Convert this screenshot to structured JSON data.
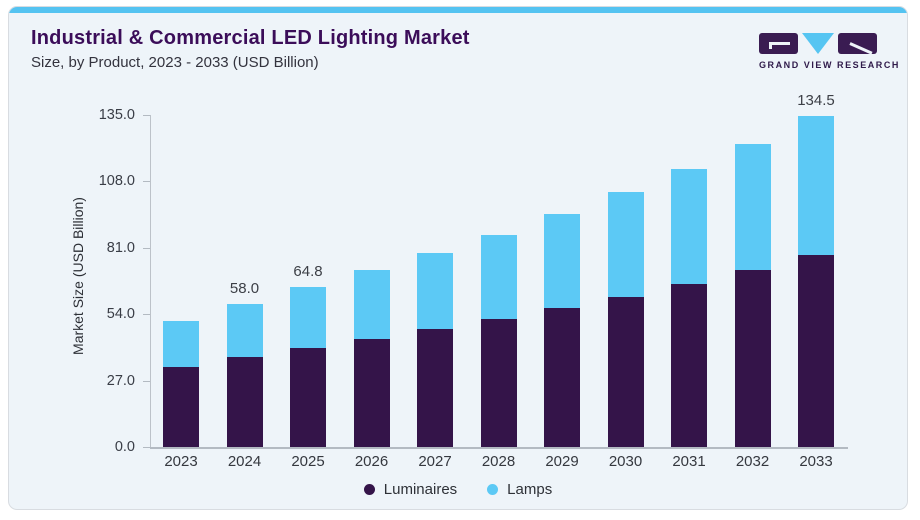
{
  "header": {
    "title": "Industrial & Commercial LED Lighting Market",
    "subtitle": "Size, by Product, 2023 - 2033 (USD Billion)"
  },
  "logo": {
    "caption": "GRAND VIEW RESEARCH",
    "purple": "#3a1c52",
    "blue": "#56c5f2"
  },
  "colors": {
    "card_background": "#eef4f9",
    "accent_strip": "#54c3f1",
    "title_text": "#3b0d59",
    "axis_line": "#b3bac2"
  },
  "chart_data": {
    "type": "bar",
    "stacked": true,
    "title": "Industrial & Commercial LED Lighting Market Size, by Product, 2023 - 2033 (USD Billion)",
    "ylabel": "Market Size (USD Billion)",
    "xlabel": "",
    "ylim": [
      0,
      135
    ],
    "grid": false,
    "legend_position": "bottom",
    "categories": [
      "2023",
      "2024",
      "2025",
      "2026",
      "2027",
      "2028",
      "2029",
      "2030",
      "2031",
      "2032",
      "2033"
    ],
    "series": [
      {
        "name": "Luminaires",
        "color": "#341449",
        "values": [
          32.4,
          36.5,
          40.0,
          44.0,
          47.9,
          52.1,
          56.3,
          61.0,
          66.3,
          71.8,
          77.8
        ]
      },
      {
        "name": "Lamps",
        "color": "#5cc9f5",
        "values": [
          18.8,
          21.5,
          24.8,
          27.8,
          31.0,
          34.1,
          38.1,
          42.4,
          46.7,
          51.4,
          56.7
        ]
      }
    ],
    "totals": [
      51.2,
      58.0,
      64.8,
      71.8,
      78.9,
      86.2,
      94.4,
      103.4,
      113.0,
      123.2,
      134.5
    ],
    "data_labels": {
      "2024": "58.0",
      "2025": "64.8",
      "2033": "134.5"
    },
    "yticks": [
      {
        "value": 0,
        "label": "0.0"
      },
      {
        "value": 27,
        "label": "27.0"
      },
      {
        "value": 54,
        "label": "54.0"
      },
      {
        "value": 81,
        "label": "81.0"
      },
      {
        "value": 108,
        "label": "108.0"
      },
      {
        "value": 135,
        "label": "135.0"
      }
    ]
  }
}
